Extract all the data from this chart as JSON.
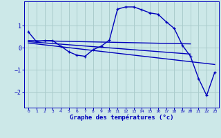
{
  "background_color": "#cce8e8",
  "grid_color": "#aacccc",
  "line_color": "#0000bb",
  "title": "Graphe des températures (°c)",
  "xlim": [
    -0.5,
    23.5
  ],
  "ylim": [
    -2.7,
    2.1
  ],
  "yticks": [
    -2,
    -1,
    0,
    1
  ],
  "xticks": [
    0,
    1,
    2,
    3,
    4,
    5,
    6,
    7,
    8,
    9,
    10,
    11,
    12,
    13,
    14,
    15,
    16,
    17,
    18,
    19,
    20,
    21,
    22,
    23
  ],
  "series1_x": [
    0,
    1,
    2,
    3,
    4,
    5,
    6,
    7,
    8,
    9,
    10,
    11,
    12,
    13,
    14,
    15,
    16,
    17,
    18,
    19,
    20,
    21,
    22,
    23
  ],
  "series1_y": [
    0.72,
    0.28,
    0.33,
    0.33,
    0.08,
    -0.18,
    -0.33,
    -0.38,
    -0.08,
    0.08,
    0.35,
    1.75,
    1.85,
    1.85,
    1.72,
    1.58,
    1.52,
    1.18,
    0.88,
    0.12,
    -0.38,
    -1.38,
    -2.15,
    -1.1
  ],
  "series2_x": [
    0,
    20
  ],
  "series2_y": [
    0.33,
    0.18
  ],
  "series3_x": [
    0,
    20
  ],
  "series3_y": [
    0.28,
    -0.28
  ],
  "series4_x": [
    0,
    23
  ],
  "series4_y": [
    0.22,
    -0.75
  ]
}
